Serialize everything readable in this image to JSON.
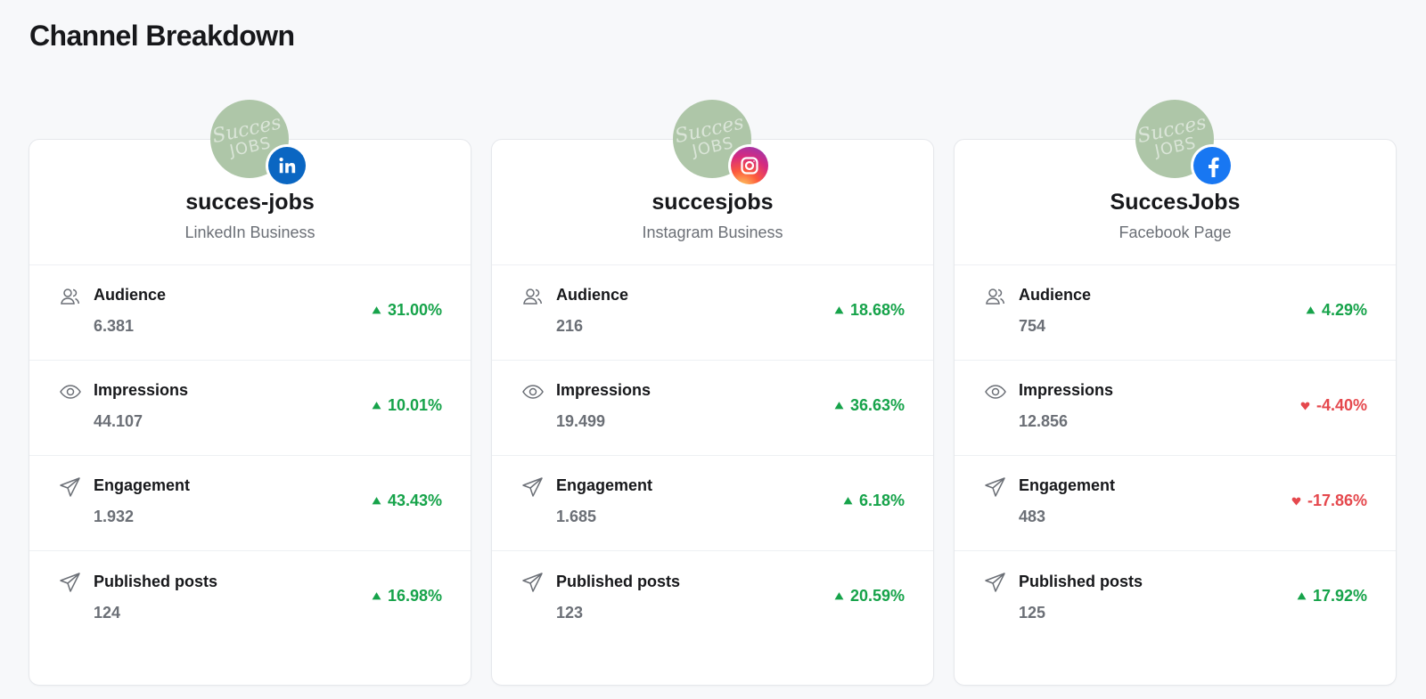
{
  "page": {
    "title": "Channel Breakdown"
  },
  "colors": {
    "up": "#16a34a",
    "down": "#e5484d",
    "avatar_bg": "#aec6a8"
  },
  "channels": [
    {
      "account_name": "succes-jobs",
      "account_type": "LinkedIn Business",
      "platform_icon": "linkedin-icon",
      "metrics": [
        {
          "icon": "audience-icon",
          "label": "Audience",
          "value": "6.381",
          "change": "31.00%",
          "direction": "up"
        },
        {
          "icon": "eye-icon",
          "label": "Impressions",
          "value": "44.107",
          "change": "10.01%",
          "direction": "up"
        },
        {
          "icon": "paper-plane-icon",
          "label": "Engagement",
          "value": "1.932",
          "change": "43.43%",
          "direction": "up"
        },
        {
          "icon": "paper-plane-icon",
          "label": "Published posts",
          "value": "124",
          "change": "16.98%",
          "direction": "up"
        }
      ]
    },
    {
      "account_name": "succesjobs",
      "account_type": "Instagram Business",
      "platform_icon": "instagram-icon",
      "metrics": [
        {
          "icon": "audience-icon",
          "label": "Audience",
          "value": "216",
          "change": "18.68%",
          "direction": "up"
        },
        {
          "icon": "eye-icon",
          "label": "Impressions",
          "value": "19.499",
          "change": "36.63%",
          "direction": "up"
        },
        {
          "icon": "paper-plane-icon",
          "label": "Engagement",
          "value": "1.685",
          "change": "6.18%",
          "direction": "up"
        },
        {
          "icon": "paper-plane-icon",
          "label": "Published posts",
          "value": "123",
          "change": "20.59%",
          "direction": "up"
        }
      ]
    },
    {
      "account_name": "SuccesJobs",
      "account_type": "Facebook Page",
      "platform_icon": "facebook-icon",
      "metrics": [
        {
          "icon": "audience-icon",
          "label": "Audience",
          "value": "754",
          "change": "4.29%",
          "direction": "up"
        },
        {
          "icon": "eye-icon",
          "label": "Impressions",
          "value": "12.856",
          "change": "-4.40%",
          "direction": "down"
        },
        {
          "icon": "paper-plane-icon",
          "label": "Engagement",
          "value": "483",
          "change": "-17.86%",
          "direction": "down"
        },
        {
          "icon": "paper-plane-icon",
          "label": "Published posts",
          "value": "125",
          "change": "17.92%",
          "direction": "up"
        }
      ]
    }
  ]
}
